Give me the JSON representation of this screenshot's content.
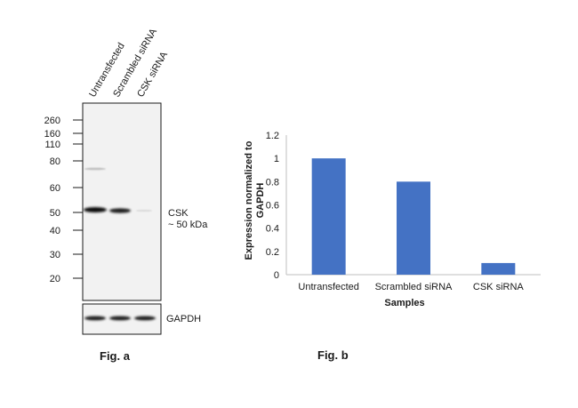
{
  "figure_a": {
    "caption": "Fig. a",
    "lanes": [
      "Untransfected",
      "Scrambled siRNA",
      "CSK siRNA"
    ],
    "mw_markers": [
      260,
      160,
      110,
      80,
      60,
      50,
      40,
      30,
      20
    ],
    "band_label": "CSK",
    "band_size": "~ 50 kDa",
    "loading_control": "GAPDH"
  },
  "chart_data": {
    "type": "bar",
    "title": "",
    "categories": [
      "Untransfected",
      "Scrambled siRNA",
      "CSK siRNA"
    ],
    "values": [
      1.0,
      0.8,
      0.1
    ],
    "xlabel": "Samples",
    "ylabel": "Expression normalized to GAPDH",
    "ylim": [
      0,
      1.2
    ],
    "yticks": [
      0,
      0.2,
      0.4,
      0.6,
      0.8,
      1,
      1.2
    ],
    "grid": false,
    "bar_color": "#4472c4",
    "caption": "Fig. b"
  }
}
